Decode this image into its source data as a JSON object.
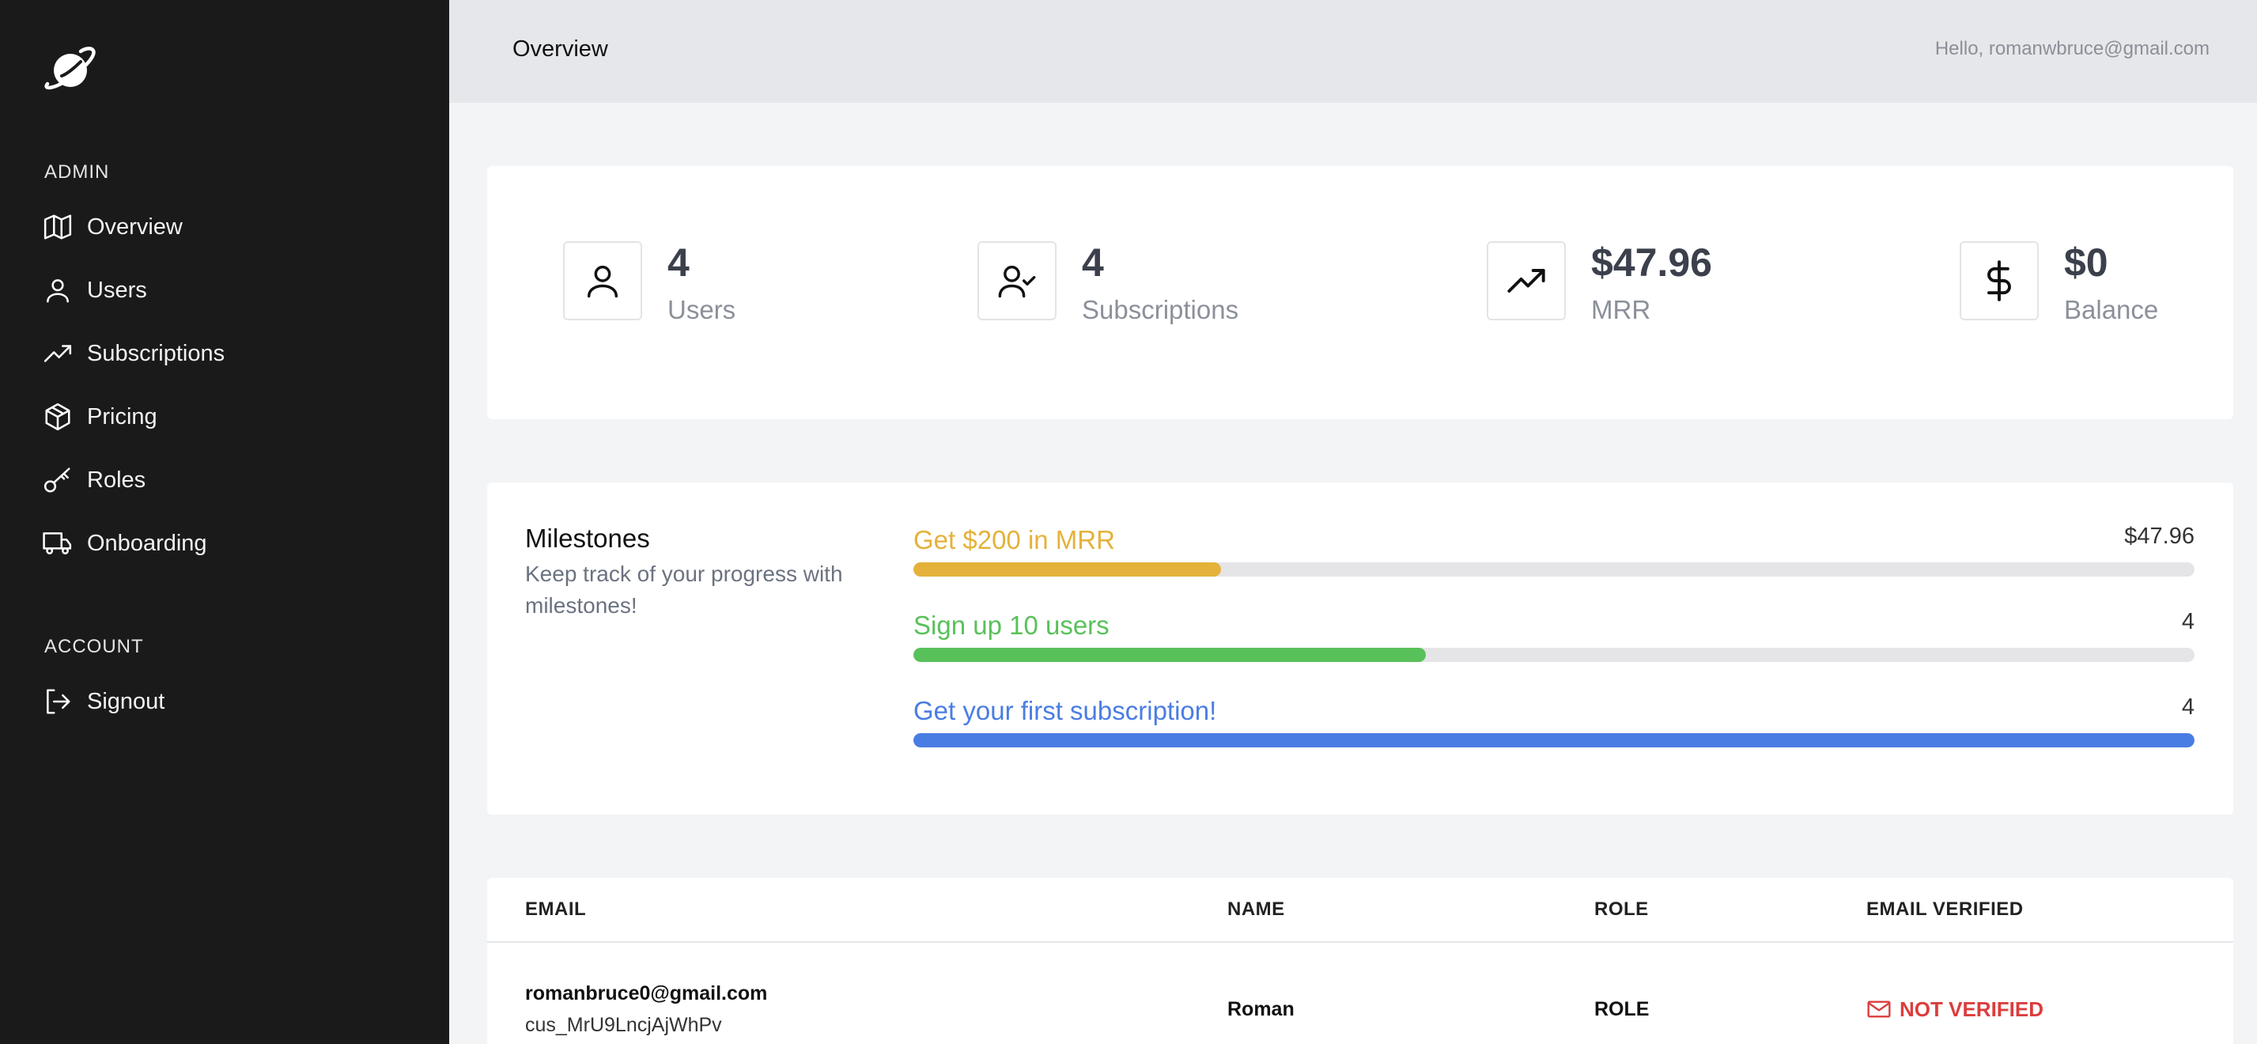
{
  "sidebar": {
    "admin_label": "ADMIN",
    "account_label": "ACCOUNT",
    "items": [
      {
        "label": "Overview",
        "icon": "map-icon"
      },
      {
        "label": "Users",
        "icon": "user-icon"
      },
      {
        "label": "Subscriptions",
        "icon": "trending-up-icon"
      },
      {
        "label": "Pricing",
        "icon": "package-icon"
      },
      {
        "label": "Roles",
        "icon": "key-icon"
      },
      {
        "label": "Onboarding",
        "icon": "truck-icon"
      }
    ],
    "signout": {
      "label": "Signout",
      "icon": "log-out-icon"
    }
  },
  "header": {
    "title": "Overview",
    "greeting": "Hello, romanwbruce@gmail.com"
  },
  "stats": [
    {
      "value": "4",
      "label": "Users",
      "icon": "user-icon"
    },
    {
      "value": "4",
      "label": "Subscriptions",
      "icon": "user-check-icon"
    },
    {
      "value": "$47.96",
      "label": "MRR",
      "icon": "trending-up-icon"
    },
    {
      "value": "$0",
      "label": "Balance",
      "icon": "dollar-icon"
    }
  ],
  "milestones": {
    "title": "Milestones",
    "subtitle": "Keep track of your progress with milestones!",
    "items": [
      {
        "label": "Get $200 in MRR",
        "value": "$47.96",
        "progress": 0.24,
        "color": "#e4b23b"
      },
      {
        "label": "Sign up 10 users",
        "value": "4",
        "progress": 0.4,
        "color": "#59c15a"
      },
      {
        "label": "Get your first subscription!",
        "value": "4",
        "progress": 1.0,
        "color": "#4a7de3"
      }
    ]
  },
  "table": {
    "headers": {
      "email": "EMAIL",
      "name": "NAME",
      "role": "ROLE",
      "verified": "EMAIL VERIFIED"
    },
    "rows": [
      {
        "email": "romanbruce0@gmail.com",
        "customer_id": "cus_MrU9LncjAjWhPv",
        "name": "Roman",
        "role": "ROLE",
        "verified": "NOT VERIFIED"
      }
    ]
  },
  "colors": {
    "sidebar_bg": "#1a1a1a",
    "not_verified": "#dc3d3d"
  }
}
